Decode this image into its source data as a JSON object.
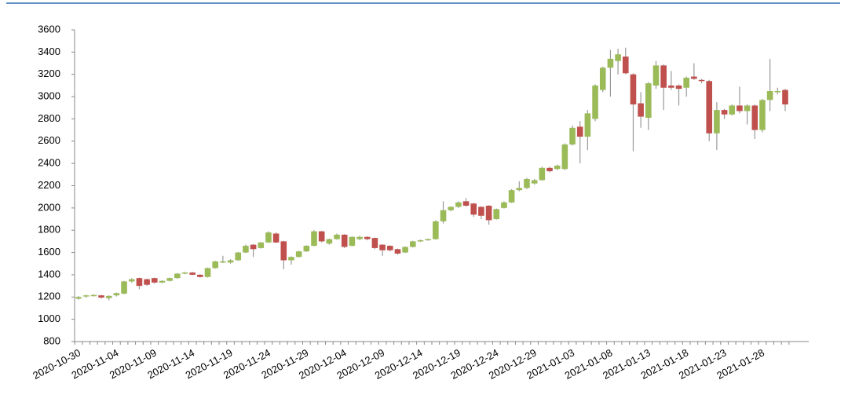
{
  "chart_data": {
    "type": "candlestick",
    "categories": [
      "2020-10-30",
      null,
      null,
      null,
      null,
      "2020-11-04",
      null,
      null,
      null,
      null,
      "2020-11-09",
      null,
      null,
      null,
      null,
      "2020-11-14",
      null,
      null,
      null,
      null,
      "2020-11-19",
      null,
      null,
      null,
      null,
      "2020-11-24",
      null,
      null,
      null,
      null,
      "2020-11-29",
      null,
      null,
      null,
      null,
      "2020-12-04",
      null,
      null,
      null,
      null,
      "2020-12-09",
      null,
      null,
      null,
      null,
      "2020-12-14",
      null,
      null,
      null,
      null,
      "2020-12-19",
      null,
      null,
      null,
      null,
      "2020-12-24",
      null,
      null,
      null,
      null,
      "2020-12-29",
      null,
      null,
      null,
      null,
      "2021-01-03",
      null,
      null,
      null,
      null,
      "2021-01-08",
      null,
      null,
      null,
      null,
      "2021-01-13",
      null,
      null,
      null,
      null,
      "2021-01-18",
      null,
      null,
      null,
      null,
      "2021-01-23",
      null,
      null,
      null,
      null,
      "2021-01-28",
      null,
      null,
      null
    ],
    "open": [
      1185,
      1205,
      1215,
      1215,
      1190,
      1215,
      1230,
      1340,
      1370,
      1360,
      1370,
      1330,
      1345,
      1370,
      1410,
      1420,
      1400,
      1380,
      1460,
      1510,
      1510,
      1530,
      1600,
      1670,
      1640,
      1690,
      1770,
      1700,
      1530,
      1560,
      1610,
      1660,
      1790,
      1680,
      1720,
      1760,
      1660,
      1720,
      1740,
      1730,
      1670,
      1660,
      1630,
      1600,
      1650,
      1700,
      1710,
      1720,
      1880,
      1980,
      2010,
      2060,
      2040,
      2010,
      2020,
      1900,
      2000,
      2050,
      2160,
      2180,
      2220,
      2250,
      2360,
      2350,
      2350,
      2570,
      2730,
      2640,
      2800,
      3060,
      3260,
      3320,
      3360,
      3200,
      2940,
      2810,
      3100,
      3280,
      3100,
      3100,
      3080,
      3180,
      3150,
      3140,
      2670,
      2880,
      2840,
      2920,
      2870,
      2920,
      2700,
      2970,
      3040,
      3060
    ],
    "high": [
      1210,
      1220,
      1225,
      1220,
      1215,
      1240,
      1345,
      1370,
      1375,
      1365,
      1375,
      1350,
      1375,
      1415,
      1425,
      1425,
      1405,
      1465,
      1525,
      1570,
      1540,
      1605,
      1670,
      1675,
      1695,
      1790,
      1780,
      1705,
      1565,
      1615,
      1665,
      1800,
      1795,
      1725,
      1770,
      1765,
      1745,
      1750,
      1745,
      1735,
      1675,
      1665,
      1635,
      1655,
      1705,
      1715,
      1725,
      1890,
      2060,
      2015,
      2060,
      2090,
      2045,
      2015,
      2025,
      1995,
      2060,
      2170,
      2240,
      2270,
      2260,
      2370,
      2370,
      2390,
      2580,
      2740,
      2780,
      2880,
      3110,
      3270,
      3420,
      3430,
      3440,
      3210,
      3040,
      3130,
      3320,
      3290,
      3230,
      3110,
      3180,
      3300,
      3160,
      3150,
      2950,
      2890,
      2930,
      3090,
      2930,
      2930,
      2980,
      3340,
      3080,
      3070
    ],
    "low": [
      1175,
      1195,
      1205,
      1185,
      1170,
      1205,
      1225,
      1330,
      1270,
      1300,
      1320,
      1325,
      1340,
      1365,
      1405,
      1395,
      1375,
      1375,
      1455,
      1505,
      1500,
      1525,
      1595,
      1560,
      1635,
      1685,
      1685,
      1450,
      1490,
      1555,
      1605,
      1655,
      1690,
      1670,
      1715,
      1640,
      1655,
      1710,
      1710,
      1630,
      1570,
      1610,
      1580,
      1595,
      1645,
      1695,
      1705,
      1715,
      1860,
      1970,
      2000,
      2010,
      1920,
      1900,
      1850,
      1895,
      1995,
      2045,
      2150,
      2170,
      2210,
      2245,
      2320,
      2340,
      2340,
      2560,
      2400,
      2520,
      2780,
      3040,
      3000,
      3200,
      3200,
      2510,
      2720,
      2700,
      3070,
      2880,
      3060,
      2920,
      3000,
      3150,
      3120,
      2600,
      2520,
      2800,
      2830,
      2850,
      2750,
      2620,
      2680,
      2870,
      3020,
      2870
    ],
    "close": [
      1200,
      1215,
      1218,
      1195,
      1210,
      1235,
      1340,
      1360,
      1300,
      1310,
      1330,
      1345,
      1370,
      1410,
      1420,
      1400,
      1380,
      1460,
      1520,
      1520,
      1530,
      1600,
      1660,
      1630,
      1690,
      1780,
      1690,
      1530,
      1560,
      1610,
      1660,
      1790,
      1700,
      1720,
      1760,
      1650,
      1740,
      1740,
      1720,
      1640,
      1620,
      1620,
      1590,
      1650,
      1700,
      1710,
      1720,
      1880,
      1980,
      2010,
      2050,
      2020,
      1940,
      1930,
      1890,
      1990,
      2050,
      2160,
      2180,
      2260,
      2250,
      2360,
      2330,
      2380,
      2570,
      2720,
      2640,
      2850,
      3100,
      3260,
      3340,
      3380,
      3210,
      2930,
      2820,
      3120,
      3280,
      3080,
      3080,
      3070,
      3170,
      3160,
      3140,
      2670,
      2880,
      2840,
      2920,
      2870,
      2920,
      2700,
      2970,
      3050,
      3050,
      2930
    ],
    "up_color": "#9bbb59",
    "down_color": "#c0504d",
    "ylim": [
      800,
      3600
    ],
    "yticks": [
      800,
      1000,
      1200,
      1400,
      1600,
      1800,
      2000,
      2200,
      2400,
      2600,
      2800,
      3000,
      3200,
      3400,
      3600
    ]
  }
}
